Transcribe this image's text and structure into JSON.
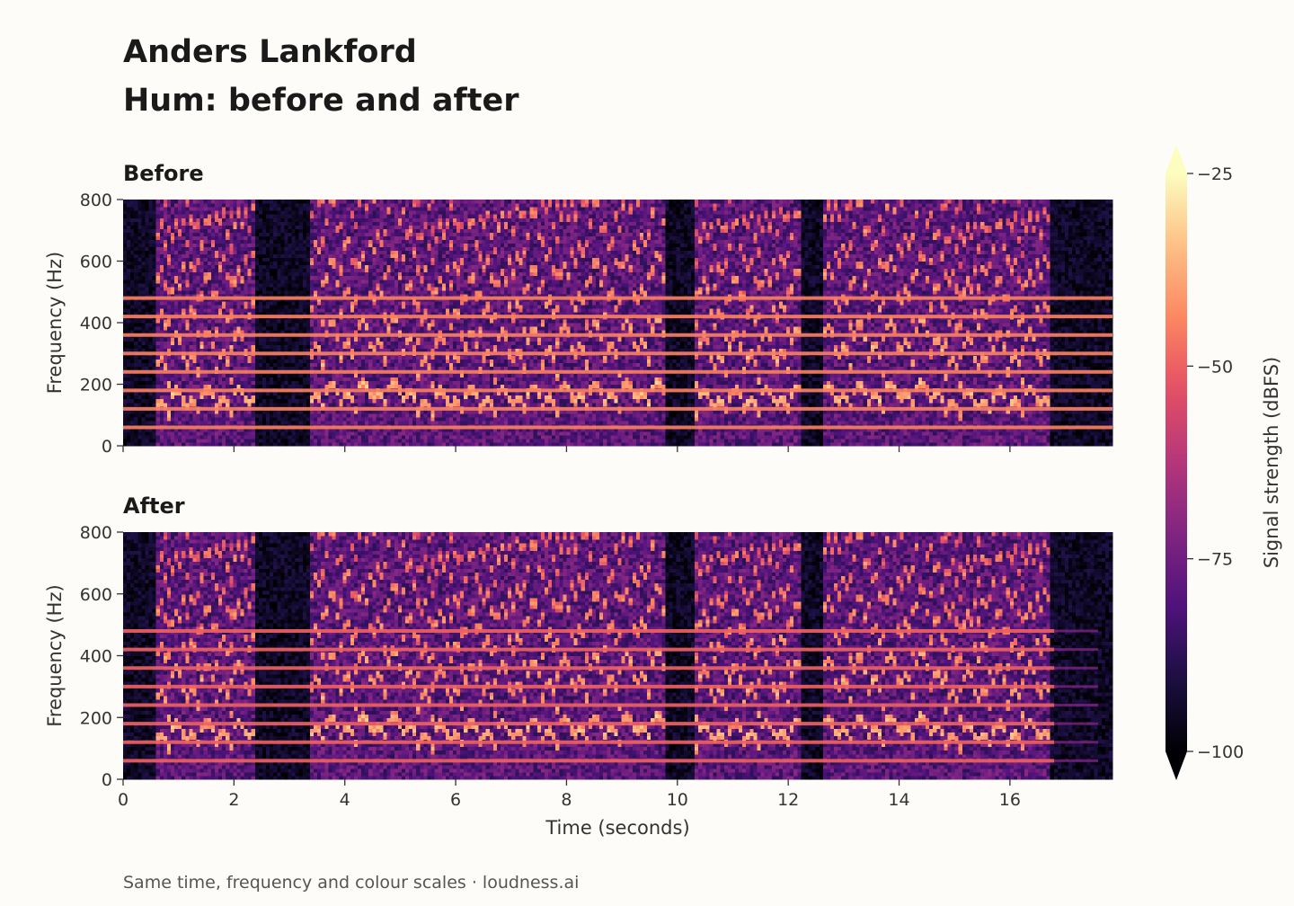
{
  "header": {
    "title": "Anders Lankford",
    "subtitle": "Hum: before and after"
  },
  "footer": {
    "note": "Same time, frequency and colour scales  ·  loudness.ai"
  },
  "chart_data": [
    {
      "type": "heatmap",
      "title": "Before",
      "xlabel": "",
      "ylabel": "Frequency (Hz)",
      "xlim": [
        0,
        17.85
      ],
      "ylim": [
        0,
        800
      ],
      "xticks": [
        0,
        2,
        4,
        6,
        8,
        10,
        12,
        14,
        16
      ],
      "xtick_labels_shown": false,
      "yticks": [
        0,
        200,
        400,
        600,
        800
      ],
      "color_range": [
        -100,
        -25
      ],
      "colormap": "magma",
      "hum_present": true,
      "hum_harmonics_hz": [
        60,
        120,
        180,
        240,
        300,
        360,
        420,
        480
      ],
      "hum_level_dbfs": -45,
      "speech_segments_s": [
        [
          0.6,
          2.4
        ],
        [
          3.35,
          5.8
        ],
        [
          5.8,
          9.8
        ],
        [
          10.3,
          12.2
        ],
        [
          12.6,
          16.7
        ]
      ],
      "silence_floor_dbfs": -100
    },
    {
      "type": "heatmap",
      "title": "After",
      "xlabel": "Time (seconds)",
      "ylabel": "Frequency (Hz)",
      "xlim": [
        0,
        17.85
      ],
      "ylim": [
        0,
        800
      ],
      "xticks": [
        0,
        2,
        4,
        6,
        8,
        10,
        12,
        14,
        16
      ],
      "xtick_labels_shown": true,
      "yticks": [
        0,
        200,
        400,
        600,
        800
      ],
      "color_range": [
        -100,
        -25
      ],
      "colormap": "magma",
      "hum_present": true,
      "hum_harmonics_hz": [
        60,
        120,
        180,
        240,
        300,
        360,
        420,
        480
      ],
      "hum_level_dbfs": -50,
      "hum_faded_after_s": 16.8,
      "speech_segments_s": [
        [
          0.6,
          2.4
        ],
        [
          3.35,
          5.8
        ],
        [
          5.8,
          9.8
        ],
        [
          10.3,
          12.2
        ],
        [
          12.6,
          16.7
        ]
      ],
      "silence_floor_dbfs": -100
    }
  ],
  "colorbar": {
    "label": "Signal strength (dBFS)",
    "ticks": [
      -25,
      -50,
      -75,
      -100
    ],
    "range": [
      -100,
      -25
    ],
    "extend": "both"
  }
}
